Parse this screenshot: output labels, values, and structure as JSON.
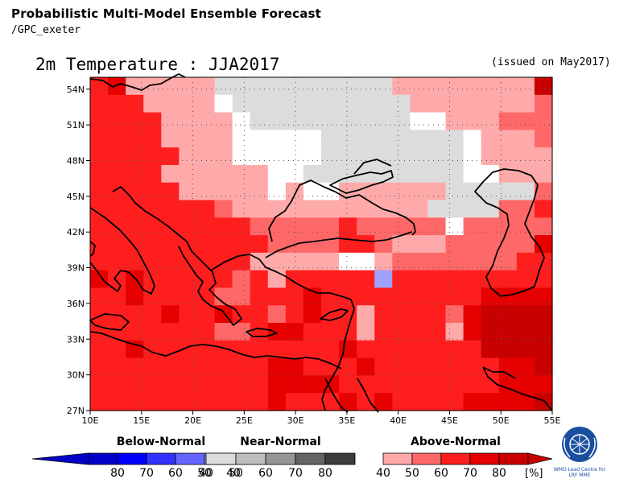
{
  "header": {
    "title": "Probabilistic Multi-Model Ensemble Forecast",
    "subtitle": "/GPC_exeter",
    "map_title": "2m Temperature : JJA2017",
    "issued": "(issued on May2017)"
  },
  "map": {
    "lon_range": [
      10,
      55
    ],
    "lat_range": [
      27,
      55
    ],
    "lon_ticks": [
      "10E",
      "15E",
      "20E",
      "25E",
      "30E",
      "35E",
      "40E",
      "45E",
      "50E",
      "55E"
    ],
    "lat_ticks": [
      "54N",
      "51N",
      "48N",
      "45N",
      "42N",
      "39N",
      "36N",
      "33N",
      "30N",
      "27N"
    ],
    "cell_size_deg": 2.5,
    "category_key": {
      "a": "Above-Normal 40-50",
      "b": "Above-Normal 50-60",
      "c": "Above-Normal 60-70",
      "d": "Above-Normal 70-80",
      "e": "Above-Normal 80+",
      "n": "Near-Normal 40-50",
      "w": "no dominant category",
      "u": "Below-Normal 40-50"
    },
    "grid_rows_north_to_south": [
      "cdaaaaannnnnnnnnnaaaaaaaae",
      "cccaaaawnnnnnnnnnnaaaaaaab",
      "ccccaaaawnnnnnnnnnwwaaabbb",
      "ccccaaaawwwwwnnnnnnnnwaaab",
      "cccccaaawwwwwnnnnnnnnwaaaad",
      "ccccaaaaaawwnnnnnnnnnwwaaab",
      "cccccaaaaawawwaaaaaannnnnbd",
      "cccccccbaaaaaaaaaaannnnbbcc",
      "cccccccccbbbbbcbbbbbwbbbbbc",
      "ccccccccccbbbbccbaaabbbbbdc",
      "cccccccccaaaaawwabbbbbbbccc",
      "dcdcccccbcacccccccccccccccd",
      "ccdccccbbcccdcccccccccdddd",
      "ccccdccdccbcdccaccccbdeeee",
      "cccccccbbcddcccaccccadeeee",
      "ccdcccccccccccdccccccceeee",
      "ccccccccccddcccdcccccccdde",
      "ccccccccccddddcccccccccddd",
      "ccccccccccdcccdcdccccdddde"
    ],
    "overrides": [
      {
        "lon_idx": 16,
        "lat_idx": 11,
        "cat": "u"
      }
    ]
  },
  "colors": {
    "a": "#ffaaaa",
    "b": "#ff6868",
    "c": "#ff1e1e",
    "d": "#e60000",
    "e": "#c80000",
    "n": "#dcdcdc",
    "w": "#ffffff",
    "u": "#a0a0ff"
  },
  "legend": {
    "below": {
      "title": "Below-Normal",
      "labels": [
        "80",
        "70",
        "60",
        "50",
        "40"
      ],
      "colors": [
        "#0000c8",
        "#0000ff",
        "#3232ff",
        "#6464ff",
        "#a0a0ff"
      ]
    },
    "near": {
      "title": "Near-Normal",
      "labels": [
        "40",
        "50",
        "60",
        "70",
        "80"
      ],
      "colors": [
        "#dcdcdc",
        "#bebebe",
        "#969696",
        "#646464",
        "#3c3c3c"
      ]
    },
    "above": {
      "title": "Above-Normal",
      "labels": [
        "40",
        "50",
        "60",
        "70",
        "80"
      ],
      "colors": [
        "#ffaaaa",
        "#ff6868",
        "#ff1e1e",
        "#e60000",
        "#c80000"
      ],
      "unit": "[%]"
    }
  },
  "logo": {
    "text_line1": "WMO Lead Centre for",
    "text_line2": "LRF MME"
  }
}
